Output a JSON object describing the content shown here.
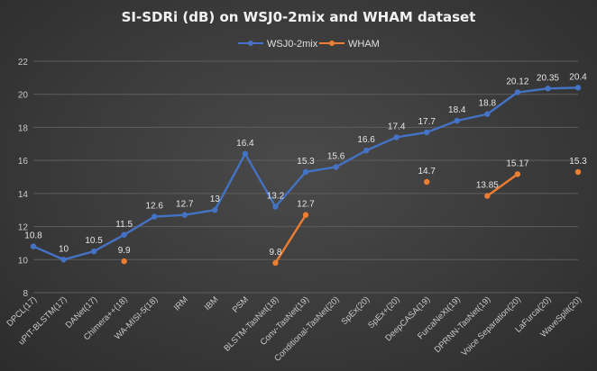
{
  "chart_data": {
    "type": "line",
    "title": "SI-SDRi (dB) on WSJ0-2mix and WHAM dataset",
    "xlabel": "",
    "ylabel": "",
    "ylim": [
      8,
      22
    ],
    "yticks": [
      8,
      10,
      12,
      14,
      16,
      18,
      20,
      22
    ],
    "grid": true,
    "legend_position": "top-center",
    "categories": [
      "DPCL(17)",
      "uPIT-BLSTM(17)",
      "DANet(17)",
      "Chimera++(18)",
      "WA-MISI-5(18)",
      "IRM",
      "IBM",
      "PSM",
      "BLSTM-TasNet(18)",
      "Conv-TasNet(19)",
      "Conditional-TasNet(20)",
      "SpEx(20)",
      "SpEx+(20)",
      "DeepCASA(19)",
      "FurcaNeXt(19)",
      "DPRNN-TasNet(19)",
      "Voice Separation(20)",
      "LaFurca(20)",
      "WaveSplit(20)"
    ],
    "series": [
      {
        "name": "WSJ0-2mix",
        "color": "#4472c4",
        "values": [
          10.8,
          10,
          10.5,
          11.5,
          12.6,
          12.7,
          13,
          16.4,
          13.2,
          15.3,
          15.6,
          16.6,
          17.4,
          17.7,
          18.4,
          18.8,
          20.12,
          20.35,
          20.4
        ],
        "labels": [
          "10.8",
          "10",
          "10.5",
          "11.5",
          "12.6",
          "12.7",
          "13",
          "16.4",
          "13.2",
          "15.3",
          "15.6",
          "16.6",
          "17.4",
          "17.7",
          "18.4",
          "18.8",
          "20.12",
          "20.35",
          "20.4"
        ]
      },
      {
        "name": "WHAM",
        "color": "#ed7d31",
        "values": [
          null,
          null,
          null,
          9.9,
          null,
          null,
          null,
          null,
          9.8,
          12.7,
          null,
          null,
          null,
          14.7,
          null,
          13.85,
          15.17,
          null,
          15.3
        ],
        "labels": [
          null,
          null,
          null,
          "9.9",
          null,
          null,
          null,
          null,
          "9.8",
          "12.7",
          null,
          null,
          null,
          "14.7",
          null,
          "13.85",
          "15.17",
          null,
          "15.3"
        ]
      }
    ]
  }
}
